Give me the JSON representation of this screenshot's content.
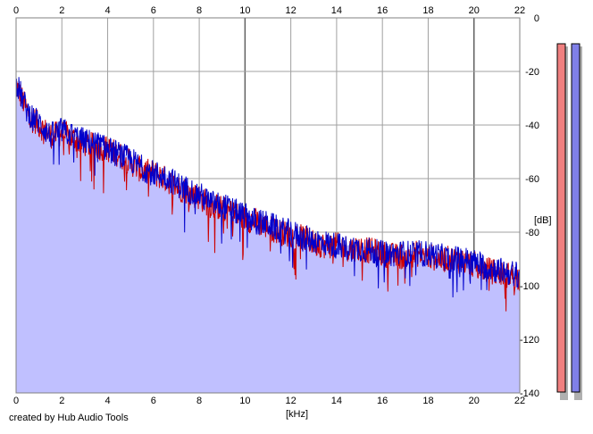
{
  "chart_data": {
    "type": "area",
    "title": "",
    "xlabel": "[kHz]",
    "ylabel": "[dB]",
    "xlim": [
      0,
      22
    ],
    "ylim": [
      -140,
      0
    ],
    "x_ticks": [
      "0",
      "2",
      "4",
      "6",
      "8",
      "10",
      "12",
      "14",
      "16",
      "18",
      "20",
      "22"
    ],
    "y_ticks": [
      "0",
      "-20",
      "-40",
      "-60",
      "-80",
      "-100",
      "-120",
      "-140"
    ],
    "grid": true,
    "series": [
      {
        "color": "#cc0000",
        "x": [
          0,
          0.5,
          1,
          1.5,
          2,
          2.5,
          3,
          3.5,
          4,
          4.5,
          5,
          5.5,
          6,
          6.5,
          7,
          7.5,
          8,
          8.5,
          9,
          9.5,
          10,
          10.5,
          11,
          11.5,
          12,
          12.5,
          13,
          13.5,
          14,
          14.5,
          15,
          15.5,
          16,
          16.5,
          17,
          17.5,
          18,
          18.5,
          19,
          19.5,
          20,
          20.5,
          21,
          21.5,
          22
        ],
        "values": [
          -25,
          -35,
          -40,
          -44,
          -43,
          -45,
          -47,
          -48,
          -49,
          -51,
          -54,
          -57,
          -58,
          -60,
          -63,
          -65,
          -67,
          -70,
          -71,
          -73,
          -75,
          -76,
          -78,
          -80,
          -81,
          -82,
          -84,
          -85,
          -85,
          -86,
          -86,
          -87,
          -88,
          -89,
          -89,
          -88,
          -89,
          -90,
          -90,
          -91,
          -92,
          -94,
          -95,
          -96,
          -97
        ]
      },
      {
        "color": "#0000cc",
        "x": [
          0,
          0.5,
          1,
          1.5,
          2,
          2.5,
          3,
          3.5,
          4,
          4.5,
          5,
          5.5,
          6,
          6.5,
          7,
          7.5,
          8,
          8.5,
          9,
          9.5,
          10,
          10.5,
          11,
          11.5,
          12,
          12.5,
          13,
          13.5,
          14,
          14.5,
          15,
          15.5,
          16,
          16.5,
          17,
          17.5,
          18,
          18.5,
          19,
          19.5,
          20,
          20.5,
          21,
          21.5,
          22
        ],
        "values": [
          -24,
          -35,
          -39,
          -44,
          -42,
          -44,
          -46,
          -47,
          -49,
          -51,
          -53,
          -56,
          -58,
          -59,
          -62,
          -64,
          -66,
          -69,
          -70,
          -72,
          -74,
          -76,
          -77,
          -79,
          -80,
          -82,
          -83,
          -84,
          -85,
          -86,
          -86,
          -87,
          -88,
          -88,
          -88,
          -88,
          -88,
          -89,
          -90,
          -90,
          -91,
          -93,
          -94,
          -95,
          -96
        ]
      }
    ],
    "fill_color": "#c0c0ff",
    "meters": [
      {
        "channel": "left",
        "color": "#f08080"
      },
      {
        "channel": "right",
        "color": "#8080e8"
      }
    ]
  },
  "footer": {
    "credit": "created by Hub Audio Tools"
  }
}
